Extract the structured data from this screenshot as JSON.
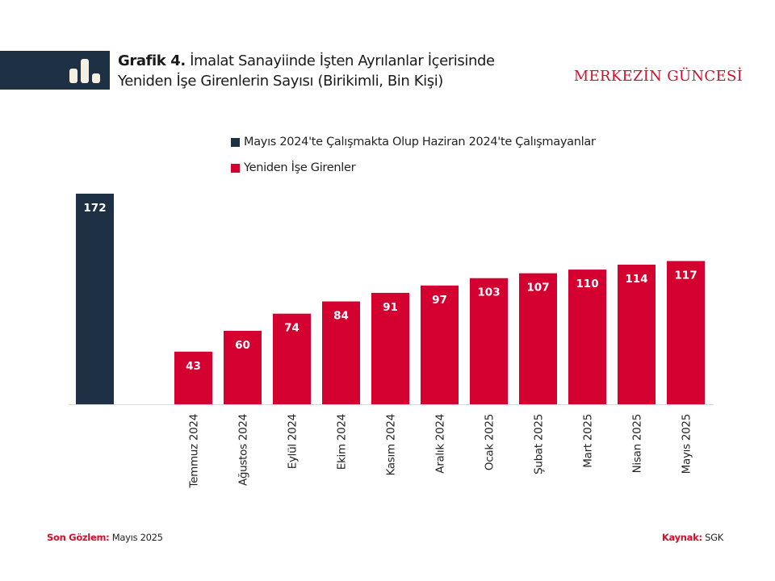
{
  "header": {
    "title_bold": "Grafik 4.",
    "title_line1": "İmalat Sanayiinde İşten Ayrılanlar İçerisinde",
    "title_line2": "Yeniden İşe Girenlerin Sayısı (Birikimli, Bin Kişi)",
    "brand": "MERKEZİN GÜNCESİ",
    "icon": "bar-chart-icon"
  },
  "colors": {
    "navy": "#1e3044",
    "red": "#d40030",
    "brand_red": "#d0112e"
  },
  "chart_data": {
    "type": "bar",
    "title": "İmalat Sanayiinde İşten Ayrılanlar İçerisinde Yeniden İşe Girenlerin Sayısı (Birikimli, Bin Kişi)",
    "xlabel": "",
    "ylabel": "",
    "ylim": [
      0,
      172
    ],
    "grid": false,
    "legend_position": "top",
    "legend": [
      {
        "name": "Mayıs 2024'te Çalışmakta Olup Haziran 2024'te Çalışmayanlar",
        "color": "#1e3044"
      },
      {
        "name": "Yeniden İşe Girenler",
        "color": "#d40030"
      }
    ],
    "categories": [
      "",
      "",
      "Temmuz 2024",
      "Ağustos 2024",
      "Eylül 2024",
      "Ekim 2024",
      "Kasım 2024",
      "Aralık 2024",
      "Ocak 2025",
      "Şubat 2025",
      "Mart 2025",
      "Nisan 2025",
      "Mayıs 2025"
    ],
    "series": [
      {
        "name": "Mayıs 2024'te Çalışmakta Olup Haziran 2024'te Çalışmayanlar",
        "color": "#1e3044",
        "values": [
          172,
          null,
          null,
          null,
          null,
          null,
          null,
          null,
          null,
          null,
          null,
          null,
          null
        ]
      },
      {
        "name": "Yeniden İşe Girenler",
        "color": "#d40030",
        "values": [
          null,
          null,
          43,
          60,
          74,
          84,
          91,
          97,
          103,
          107,
          110,
          114,
          117
        ]
      }
    ]
  },
  "footer": {
    "last_obs_label": "Son Gözlem:",
    "last_obs_value": "Mayıs 2025",
    "source_label": "Kaynak:",
    "source_value": "SGK"
  }
}
